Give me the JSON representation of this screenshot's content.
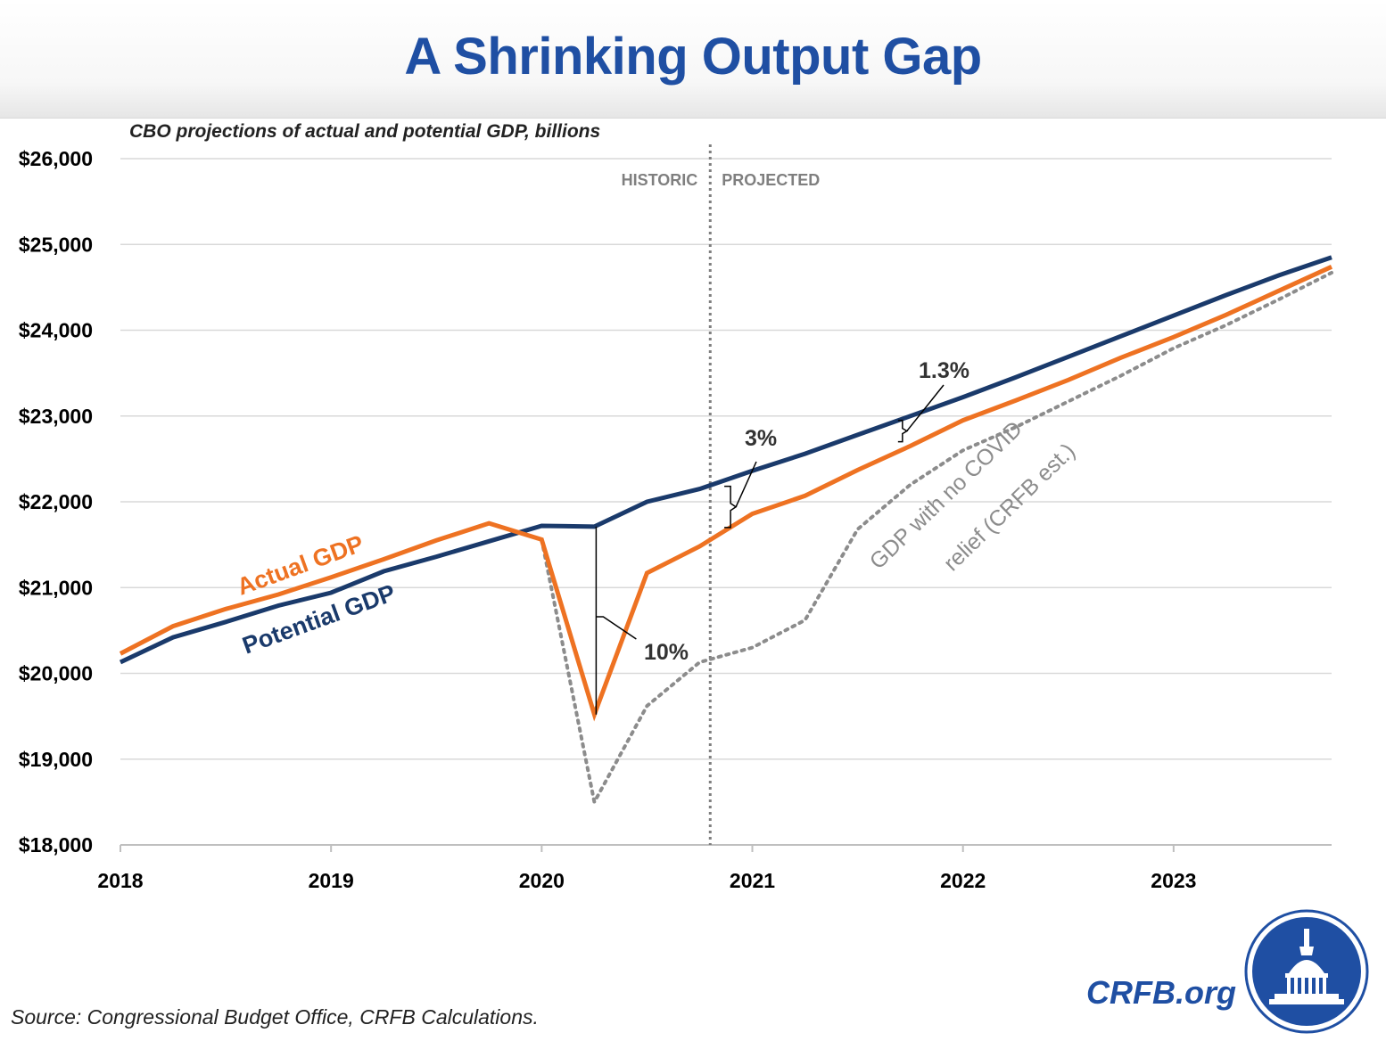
{
  "header": {
    "title": "A Shrinking Output Gap"
  },
  "footer": {
    "source": "Source: Congressional Budget Office, CRFB Calculations.",
    "site": "CRFB.org"
  },
  "colors": {
    "title": "#1f4fa3",
    "actual": "#ee7222",
    "potential": "#1a3a6b",
    "no_relief": "#8c8c8c",
    "gridline": "#d9d9d9",
    "divider": "#7f7f7f"
  },
  "chart_data": {
    "type": "line",
    "subtitle": "CBO projections of actual and potential GDP, billions",
    "xlim": [
      2018,
      2023.75
    ],
    "ylim": [
      18000,
      26000
    ],
    "y_ticks": [
      18000,
      19000,
      20000,
      21000,
      22000,
      23000,
      24000,
      25000,
      26000
    ],
    "y_tick_labels": [
      "$18,000",
      "$19,000",
      "$20,000",
      "$21,000",
      "$22,000",
      "$23,000",
      "$24,000",
      "$25,000",
      "$26,000"
    ],
    "x_ticks": [
      2018,
      2019,
      2020,
      2021,
      2022,
      2023
    ],
    "x_tick_labels": [
      "2018",
      "2019",
      "2020",
      "2021",
      "2022",
      "2023"
    ],
    "grid": "horizontal",
    "divider_x": 2020.8,
    "region_labels": {
      "left": "HISTORIC",
      "right": "PROJECTED"
    },
    "series": [
      {
        "name": "Actual GDP",
        "color": "#ee7222",
        "style": "solid",
        "points": [
          [
            2018,
            20230
          ],
          [
            2018.25,
            20550
          ],
          [
            2018.5,
            20750
          ],
          [
            2018.75,
            20920
          ],
          [
            2019,
            21120
          ],
          [
            2019.25,
            21330
          ],
          [
            2019.5,
            21550
          ],
          [
            2019.75,
            21750
          ],
          [
            2020,
            21560
          ],
          [
            2020.25,
            19520
          ],
          [
            2020.5,
            21170
          ],
          [
            2020.75,
            21480
          ],
          [
            2021,
            21860
          ],
          [
            2021.25,
            22070
          ],
          [
            2021.5,
            22370
          ],
          [
            2021.75,
            22650
          ],
          [
            2022,
            22950
          ],
          [
            2022.25,
            23180
          ],
          [
            2022.5,
            23420
          ],
          [
            2022.75,
            23680
          ],
          [
            2023,
            23920
          ],
          [
            2023.25,
            24180
          ],
          [
            2023.5,
            24460
          ],
          [
            2023.75,
            24740
          ]
        ]
      },
      {
        "name": "Potential GDP",
        "color": "#1a3a6b",
        "style": "solid",
        "points": [
          [
            2018,
            20130
          ],
          [
            2018.25,
            20420
          ],
          [
            2018.5,
            20600
          ],
          [
            2018.75,
            20790
          ],
          [
            2019,
            20940
          ],
          [
            2019.25,
            21190
          ],
          [
            2019.5,
            21360
          ],
          [
            2019.75,
            21540
          ],
          [
            2020,
            21720
          ],
          [
            2020.25,
            21710
          ],
          [
            2020.5,
            22000
          ],
          [
            2020.75,
            22150
          ],
          [
            2021,
            22360
          ],
          [
            2021.25,
            22560
          ],
          [
            2021.5,
            22780
          ],
          [
            2021.75,
            23000
          ],
          [
            2022,
            23220
          ],
          [
            2022.25,
            23450
          ],
          [
            2022.5,
            23690
          ],
          [
            2022.75,
            23930
          ],
          [
            2023,
            24170
          ],
          [
            2023.25,
            24410
          ],
          [
            2023.5,
            24640
          ],
          [
            2023.75,
            24850
          ]
        ]
      },
      {
        "name": "GDP with no COVID relief (CRFB est.)",
        "color": "#8c8c8c",
        "style": "dotted",
        "points": [
          [
            2020,
            21560
          ],
          [
            2020.25,
            18500
          ],
          [
            2020.5,
            19620
          ],
          [
            2020.75,
            20130
          ],
          [
            2021,
            20300
          ],
          [
            2021.25,
            20620
          ],
          [
            2021.5,
            21680
          ],
          [
            2021.75,
            22200
          ],
          [
            2022,
            22600
          ],
          [
            2022.25,
            22870
          ],
          [
            2022.5,
            23170
          ],
          [
            2022.75,
            23470
          ],
          [
            2023,
            23790
          ],
          [
            2023.25,
            24060
          ],
          [
            2023.5,
            24360
          ],
          [
            2023.75,
            24670
          ]
        ]
      }
    ],
    "series_labels": {
      "actual": "Actual GDP",
      "potential": "Potential GDP",
      "no_relief_line1": "GDP with no COVID",
      "no_relief_line2": "relief (CRFB est.)"
    },
    "annotations": [
      {
        "text": "10%",
        "x": 2020.25,
        "y_top": 21710,
        "y_bottom": 19520
      },
      {
        "text": "3%",
        "x": 2020.85,
        "y_top": 22180,
        "y_bottom": 21700
      },
      {
        "text": "1.3%",
        "x": 2021.7,
        "y_top": 22950,
        "y_bottom": 22700
      }
    ]
  }
}
